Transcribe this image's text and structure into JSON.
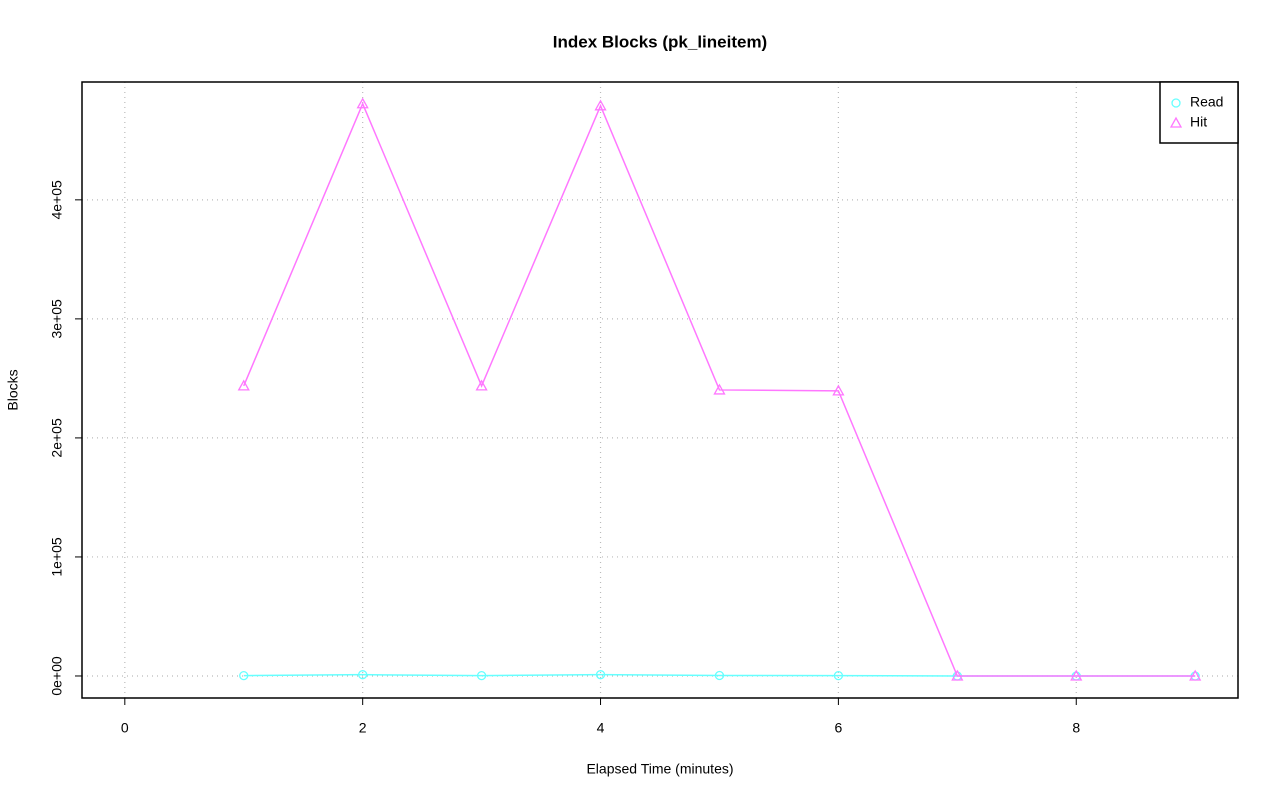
{
  "chart_data": {
    "type": "line",
    "title": "Index Blocks (pk_lineitem)",
    "x_label": "Elapsed Time (minutes)",
    "y_label": "Blocks",
    "x": [
      1,
      2,
      3,
      4,
      5,
      6,
      7,
      8,
      9
    ],
    "series": [
      {
        "name": "Read",
        "color": "#66ffff",
        "marker": "circle",
        "values": [
          300,
          1100,
          300,
          1100,
          400,
          300,
          0,
          0,
          0
        ]
      },
      {
        "name": "Hit",
        "color": "#ff77ff",
        "marker": "triangle",
        "values": [
          243700,
          480700,
          243700,
          479000,
          240300,
          239500,
          0,
          0,
          0
        ]
      }
    ],
    "xlim": [
      -0.36,
      9.36
    ],
    "xticks": [
      0,
      2,
      4,
      6,
      8
    ],
    "ylim": [
      -18500,
      499000
    ],
    "yticks": [
      {
        "value": 0,
        "label": "0e+00"
      },
      {
        "value": 100000,
        "label": "1e+05"
      },
      {
        "value": 200000,
        "label": "2e+05"
      },
      {
        "value": 300000,
        "label": "3e+05"
      },
      {
        "value": 400000,
        "label": "4e+05"
      }
    ],
    "grid": true,
    "legend": "top-right"
  }
}
